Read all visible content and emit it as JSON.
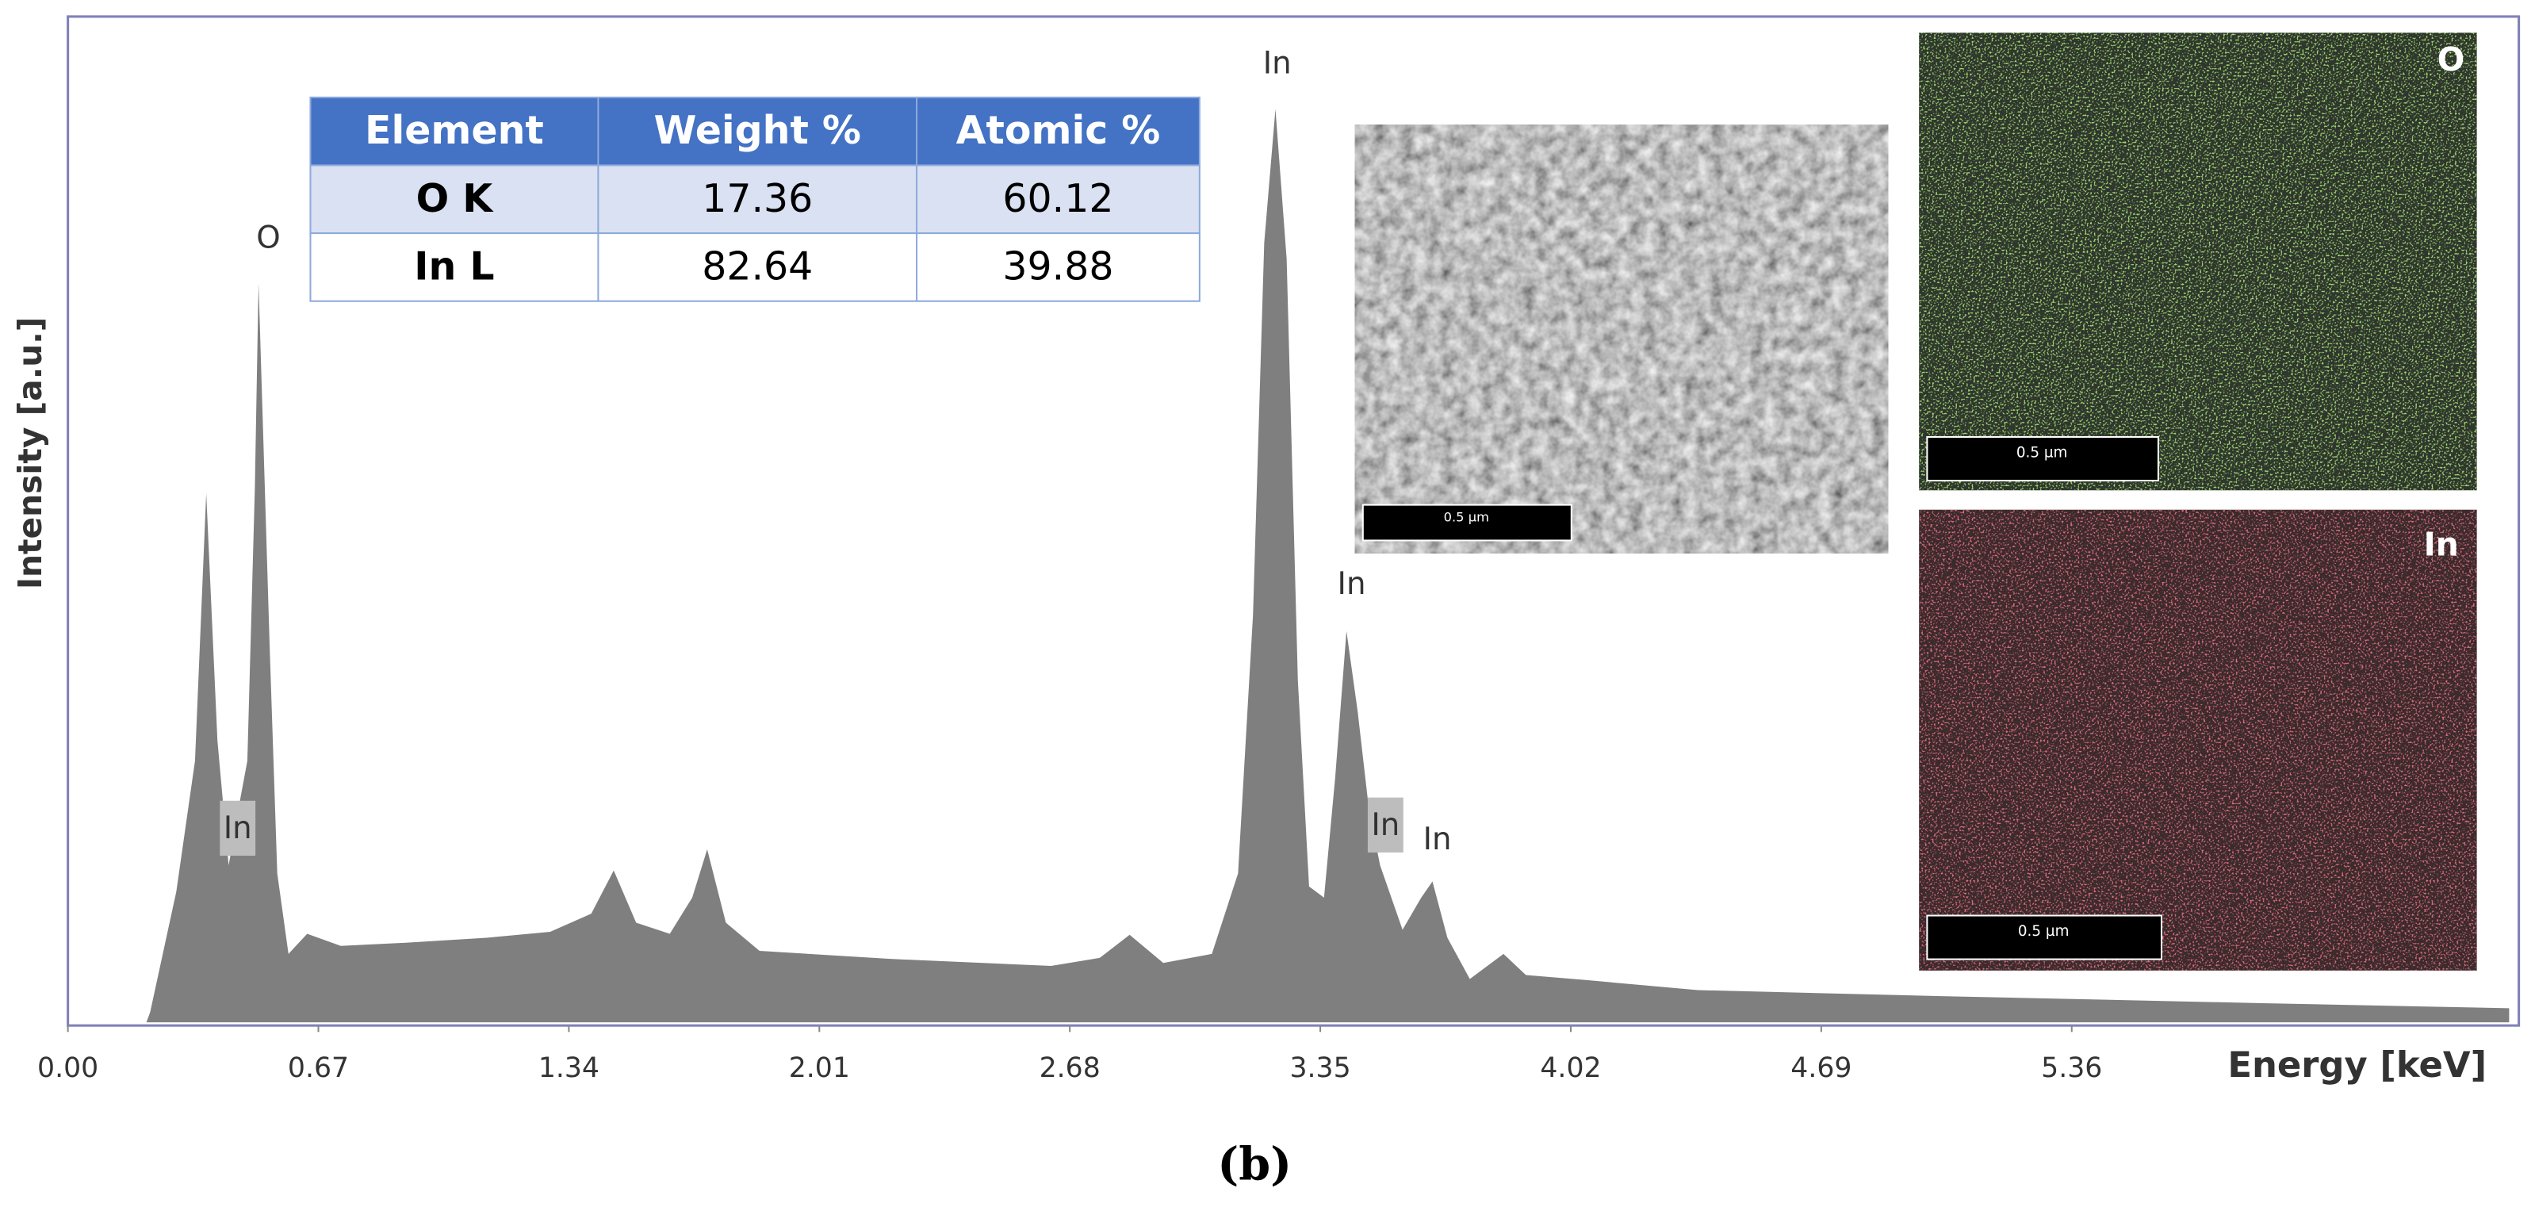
{
  "chart_data": {
    "type": "area",
    "y_label": "Intensity [a.u.]",
    "x_label": "Energy [keV]",
    "color": "#7f7f7f",
    "x": [
      0.21,
      0.22,
      0.29,
      0.34,
      0.37,
      0.4,
      0.43,
      0.46,
      0.48,
      0.5,
      0.51,
      0.54,
      0.56,
      0.59,
      0.64,
      0.73,
      0.9,
      1.12,
      1.29,
      1.4,
      1.46,
      1.52,
      1.61,
      1.67,
      1.71,
      1.76,
      1.85,
      2.2,
      2.63,
      2.76,
      2.84,
      2.93,
      3.06,
      3.13,
      3.17,
      3.2,
      3.23,
      3.26,
      3.29,
      3.32,
      3.36,
      3.39,
      3.42,
      3.45,
      3.48,
      3.51,
      3.57,
      3.62,
      3.65,
      3.69,
      3.75,
      3.84,
      3.9,
      4.06,
      4.36,
      5.01,
      5.87,
      6.53
    ],
    "values": [
      0,
      1,
      13,
      26,
      52.6,
      28,
      15.6,
      22,
      26,
      53,
      73.5,
      37,
      14.8,
      6.8,
      8.8,
      7.6,
      7.9,
      8.4,
      9.0,
      10.8,
      15.1,
      9.9,
      8.8,
      12.4,
      17.2,
      9.9,
      7.1,
      6.3,
      5.6,
      6.4,
      8.7,
      5.9,
      6.8,
      14.8,
      40.5,
      77.5,
      90.8,
      75.9,
      34,
      13.5,
      12.4,
      24.4,
      38.9,
      30.9,
      21.2,
      15.6,
      9.2,
      12.4,
      14,
      8.4,
      4.3,
      6.8,
      4.7,
      4.2,
      3.2,
      2.6,
      1.9,
      1.4
    ],
    "xlim": [
      0,
      6.53
    ],
    "ylim": [
      0,
      100
    ],
    "xticks": [
      {
        "value": 0,
        "label": "0.00"
      },
      0.67,
      1.34,
      2.01,
      2.68,
      3.35,
      4.02,
      4.69,
      5.36
    ],
    "annotations": [
      "O",
      "In",
      "In",
      "In",
      "In",
      "In"
    ]
  },
  "table": {
    "columns": [
      "Element",
      "Weight %",
      "Atomic %"
    ],
    "rows": [
      [
        "O K",
        17.36,
        60.12
      ],
      [
        "In L",
        82.64,
        39.88
      ]
    ]
  },
  "images": {
    "sem_scale": "0.5 µm",
    "maps": [
      {
        "label": "O",
        "scale": "0.5 µm"
      },
      {
        "label": "In",
        "scale": "0.5 µm"
      }
    ]
  },
  "caption": "(b)"
}
